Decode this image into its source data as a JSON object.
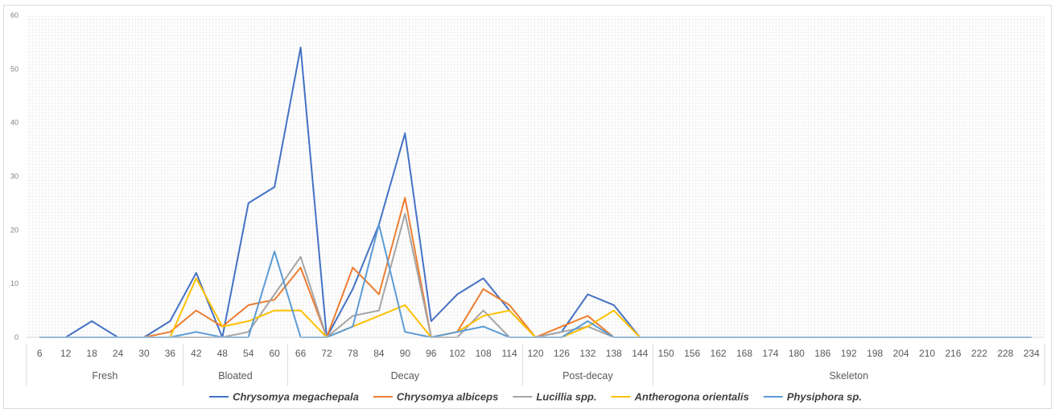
{
  "chart_data": {
    "type": "line",
    "ylim": [
      0,
      60
    ],
    "yticks": [
      0,
      10,
      20,
      30,
      40,
      50,
      60
    ],
    "grid": true,
    "legend_position": "bottom",
    "x": [
      6,
      12,
      18,
      24,
      30,
      36,
      42,
      48,
      54,
      60,
      66,
      72,
      78,
      84,
      90,
      96,
      102,
      108,
      114,
      120,
      126,
      132,
      138,
      144,
      150,
      156,
      162,
      168,
      174,
      180,
      186,
      192,
      198,
      204,
      210,
      216,
      222,
      228,
      234
    ],
    "stages": [
      {
        "name": "Fresh",
        "from": 6,
        "to": 36
      },
      {
        "name": "Bloated",
        "from": 42,
        "to": 60
      },
      {
        "name": "Decay",
        "from": 66,
        "to": 114
      },
      {
        "name": "Post-decay",
        "from": 120,
        "to": 144
      },
      {
        "name": "Skeleton",
        "from": 150,
        "to": 234
      }
    ],
    "series": [
      {
        "name": "Chrysomya megachepala",
        "color": "#4472c4",
        "values": [
          0,
          0,
          3,
          0,
          0,
          3,
          12,
          0,
          25,
          28,
          54,
          0,
          9,
          21,
          38,
          3,
          8,
          11,
          5,
          0,
          1,
          8,
          6,
          0,
          0,
          0,
          0,
          0,
          0,
          0,
          0,
          0,
          0,
          0,
          0,
          0,
          0,
          0,
          0
        ]
      },
      {
        "name": "Chrysomya albiceps",
        "color": "#ed7d31",
        "values": [
          0,
          0,
          0,
          0,
          0,
          1,
          5,
          2,
          6,
          7,
          13,
          0,
          13,
          8,
          26,
          0,
          1,
          9,
          6,
          0,
          2,
          4,
          0,
          0,
          0,
          0,
          0,
          0,
          0,
          0,
          0,
          0,
          0,
          0,
          0,
          0,
          0,
          0,
          0
        ]
      },
      {
        "name": "Lucillia spp.",
        "color": "#a5a5a5",
        "values": [
          0,
          0,
          0,
          0,
          0,
          0,
          0,
          0,
          1,
          8,
          15,
          0,
          4,
          5,
          23,
          0,
          0,
          5,
          0,
          0,
          1,
          2,
          0,
          0,
          0,
          0,
          0,
          0,
          0,
          0,
          0,
          0,
          0,
          0,
          0,
          0,
          0,
          0,
          0
        ]
      },
      {
        "name": "Antherogona orientalis",
        "color": "#ffc000",
        "values": [
          0,
          0,
          0,
          0,
          0,
          0,
          11,
          2,
          3,
          5,
          5,
          0,
          2,
          4,
          6,
          0,
          1,
          4,
          5,
          0,
          0,
          2,
          5,
          0,
          0,
          0,
          0,
          0,
          0,
          0,
          0,
          0,
          0,
          0,
          0,
          0,
          0,
          0,
          0
        ]
      },
      {
        "name": "Physiphora sp.",
        "color": "#5b9bd5",
        "values": [
          0,
          0,
          0,
          0,
          0,
          0,
          1,
          0,
          0,
          16,
          0,
          0,
          2,
          21,
          1,
          0,
          1,
          2,
          0,
          0,
          0,
          3,
          0,
          0,
          0,
          0,
          0,
          0,
          0,
          0,
          0,
          0,
          0,
          0,
          0,
          0,
          0,
          0,
          0
        ]
      }
    ]
  }
}
